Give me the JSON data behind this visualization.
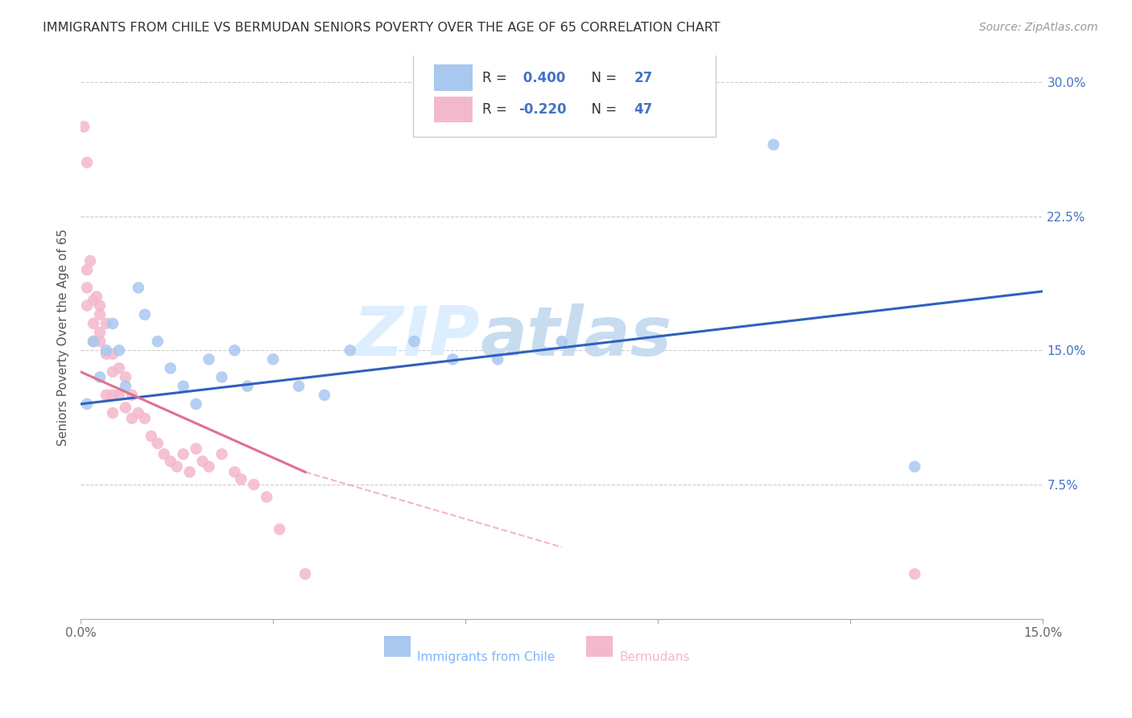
{
  "title": "IMMIGRANTS FROM CHILE VS BERMUDAN SENIORS POVERTY OVER THE AGE OF 65 CORRELATION CHART",
  "source": "Source: ZipAtlas.com",
  "ylabel": "Seniors Poverty Over the Age of 65",
  "xlabel_chile": "Immigrants from Chile",
  "xlabel_bermuda": "Bermudans",
  "xlim": [
    0.0,
    0.15
  ],
  "ylim": [
    0.0,
    0.315
  ],
  "yticks_right": [
    0.075,
    0.15,
    0.225,
    0.3
  ],
  "ytick_labels_right": [
    "7.5%",
    "15.0%",
    "22.5%",
    "30.0%"
  ],
  "r_chile": 0.4,
  "n_chile": 27,
  "r_bermuda": -0.22,
  "n_bermuda": 47,
  "color_chile": "#A8C8F0",
  "color_bermuda": "#F4B8CC",
  "line_color_chile": "#3060C0",
  "line_color_bermuda": "#E07090",
  "watermark_zip": "ZIP",
  "watermark_atlas": "atlas",
  "chile_x": [
    0.001,
    0.002,
    0.003,
    0.004,
    0.005,
    0.006,
    0.007,
    0.009,
    0.01,
    0.012,
    0.014,
    0.016,
    0.018,
    0.02,
    0.022,
    0.024,
    0.026,
    0.03,
    0.034,
    0.038,
    0.042,
    0.052,
    0.058,
    0.065,
    0.075,
    0.108,
    0.13
  ],
  "chile_y": [
    0.12,
    0.155,
    0.135,
    0.15,
    0.165,
    0.15,
    0.13,
    0.185,
    0.17,
    0.155,
    0.14,
    0.13,
    0.12,
    0.145,
    0.135,
    0.15,
    0.13,
    0.145,
    0.13,
    0.125,
    0.15,
    0.155,
    0.145,
    0.145,
    0.155,
    0.265,
    0.085
  ],
  "bermuda_x": [
    0.0005,
    0.001,
    0.001,
    0.001,
    0.001,
    0.0015,
    0.002,
    0.002,
    0.002,
    0.0025,
    0.003,
    0.003,
    0.003,
    0.003,
    0.004,
    0.004,
    0.004,
    0.005,
    0.005,
    0.005,
    0.005,
    0.006,
    0.006,
    0.007,
    0.007,
    0.008,
    0.008,
    0.009,
    0.01,
    0.011,
    0.012,
    0.013,
    0.014,
    0.015,
    0.016,
    0.017,
    0.018,
    0.019,
    0.02,
    0.022,
    0.024,
    0.025,
    0.027,
    0.029,
    0.031,
    0.035,
    0.13
  ],
  "bermuda_y": [
    0.275,
    0.255,
    0.195,
    0.185,
    0.175,
    0.2,
    0.178,
    0.165,
    0.155,
    0.18,
    0.17,
    0.16,
    0.155,
    0.175,
    0.165,
    0.148,
    0.125,
    0.148,
    0.138,
    0.125,
    0.115,
    0.14,
    0.125,
    0.135,
    0.118,
    0.125,
    0.112,
    0.115,
    0.112,
    0.102,
    0.098,
    0.092,
    0.088,
    0.085,
    0.092,
    0.082,
    0.095,
    0.088,
    0.085,
    0.092,
    0.082,
    0.078,
    0.075,
    0.068,
    0.05,
    0.025,
    0.025
  ]
}
